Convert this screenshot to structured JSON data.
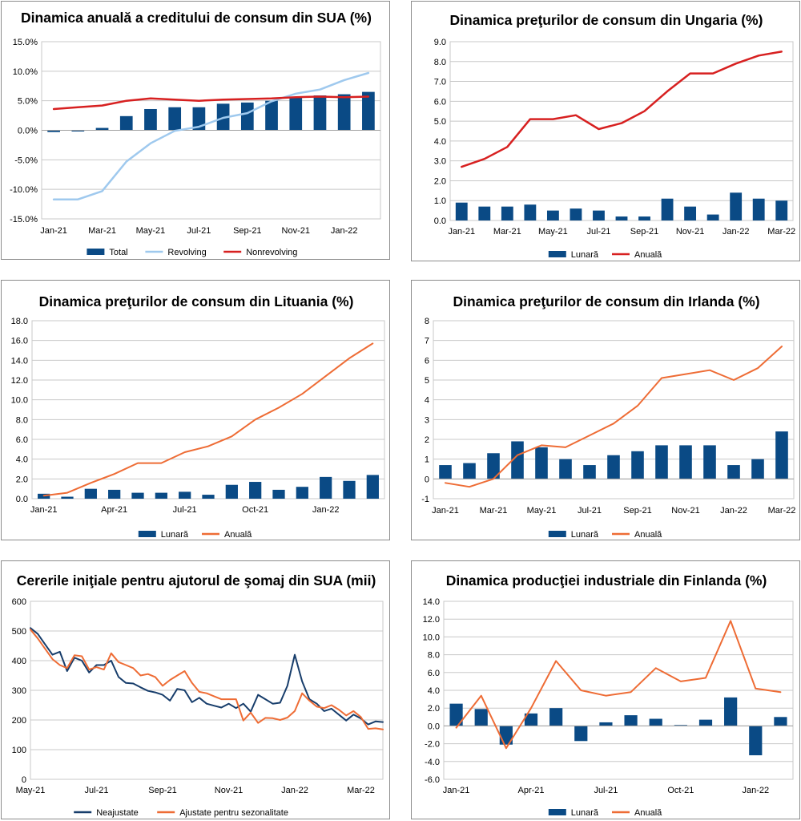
{
  "chart_data": [
    {
      "type": "bar",
      "title": "Dinamica anuală a creditului de consum din SUA (%)",
      "categories": [
        "Jan-21",
        "Feb-21",
        "Mar-21",
        "Apr-21",
        "May-21",
        "Jun-21",
        "Jul-21",
        "Aug-21",
        "Sep-21",
        "Oct-21",
        "Nov-21",
        "Dec-21",
        "Jan-22",
        "Feb-22"
      ],
      "x_tick_labels": [
        "Jan-21",
        "Mar-21",
        "May-21",
        "Jul-21",
        "Sep-21",
        "Nov-21",
        "Jan-22"
      ],
      "y_tick_labels": [
        "15.0%",
        "10.0%",
        "5.0%",
        "0.0%",
        "-5.0%",
        "-10.0%",
        "-15.0%"
      ],
      "ylim": [
        -15,
        15
      ],
      "y_ticks": [
        15,
        10,
        5,
        0,
        -5,
        -10,
        -15
      ],
      "series": [
        {
          "name": "Total",
          "kind": "bar",
          "color": "#0a4a85",
          "values": [
            -0.3,
            -0.2,
            0.4,
            2.4,
            3.6,
            3.9,
            3.9,
            4.5,
            4.7,
            5.0,
            5.6,
            5.9,
            6.1,
            6.5
          ]
        },
        {
          "name": "Revolving",
          "kind": "line",
          "color": "#9fc9ee",
          "values": [
            -11.7,
            -11.7,
            -10.3,
            -5.3,
            -2.2,
            -0.1,
            0.6,
            2.1,
            2.9,
            4.9,
            6.2,
            6.9,
            8.5,
            9.7
          ]
        },
        {
          "name": "Nonrevolving",
          "kind": "line",
          "color": "#d72020",
          "values": [
            3.6,
            3.9,
            4.2,
            5.0,
            5.4,
            5.2,
            5.0,
            5.2,
            5.3,
            5.4,
            5.6,
            5.7,
            5.6,
            5.7
          ]
        }
      ],
      "grid": "horizontal",
      "legend_position": "bottom"
    },
    {
      "type": "bar",
      "title": "Dinamica preţurilor de consum din Ungaria (%)",
      "categories": [
        "Jan-21",
        "Feb-21",
        "Mar-21",
        "Apr-21",
        "May-21",
        "Jun-21",
        "Jul-21",
        "Aug-21",
        "Sep-21",
        "Oct-21",
        "Nov-21",
        "Dec-21",
        "Jan-22",
        "Feb-22",
        "Mar-22"
      ],
      "x_tick_labels": [
        "Jan-21",
        "Mar-21",
        "May-21",
        "Jul-21",
        "Sep-21",
        "Nov-21",
        "Jan-22",
        "Mar-22"
      ],
      "y_tick_labels": [
        "9.0",
        "8.0",
        "7.0",
        "6.0",
        "5.0",
        "4.0",
        "3.0",
        "2.0",
        "1.0",
        "0.0"
      ],
      "ylim": [
        0,
        9
      ],
      "y_ticks": [
        9,
        8,
        7,
        6,
        5,
        4,
        3,
        2,
        1,
        0
      ],
      "series": [
        {
          "name": "Lunară",
          "kind": "bar",
          "color": "#0a4a85",
          "values": [
            0.9,
            0.7,
            0.7,
            0.8,
            0.5,
            0.6,
            0.5,
            0.2,
            0.2,
            1.1,
            0.7,
            0.3,
            1.4,
            1.1,
            1.0
          ]
        },
        {
          "name": "Anuală",
          "kind": "line",
          "color": "#d72020",
          "values": [
            2.7,
            3.1,
            3.7,
            5.1,
            5.1,
            5.3,
            4.6,
            4.9,
            5.5,
            6.5,
            7.4,
            7.4,
            7.9,
            8.3,
            8.5
          ]
        }
      ],
      "grid": "horizontal",
      "legend_position": "bottom"
    },
    {
      "type": "bar",
      "title": "Dinamica preţurilor de consum din Lituania (%)",
      "categories": [
        "Jan-21",
        "Feb-21",
        "Mar-21",
        "Apr-21",
        "May-21",
        "Jun-21",
        "Jul-21",
        "Aug-21",
        "Sep-21",
        "Oct-21",
        "Nov-21",
        "Dec-21",
        "Jan-22",
        "Feb-22",
        "Mar-22"
      ],
      "x_tick_labels": [
        "Jan-21",
        "Apr-21",
        "Jul-21",
        "Oct-21",
        "Jan-22"
      ],
      "y_tick_labels": [
        "18.0",
        "16.0",
        "14.0",
        "12.0",
        "10.0",
        "8.0",
        "6.0",
        "4.0",
        "2.0",
        "0.0"
      ],
      "ylim": [
        0,
        18
      ],
      "y_ticks": [
        18,
        16,
        14,
        12,
        10,
        8,
        6,
        4,
        2,
        0
      ],
      "series": [
        {
          "name": "Lunară",
          "kind": "bar",
          "color": "#0a4a85",
          "values": [
            0.5,
            0.2,
            1.0,
            0.9,
            0.6,
            0.6,
            0.7,
            0.4,
            1.4,
            1.7,
            0.9,
            1.2,
            2.2,
            1.8,
            2.4
          ]
        },
        {
          "name": "Anuală",
          "kind": "line",
          "color": "#ee6c35",
          "values": [
            0.3,
            0.6,
            1.6,
            2.5,
            3.6,
            3.6,
            4.7,
            5.3,
            6.3,
            8.0,
            9.2,
            10.6,
            12.4,
            14.2,
            15.7
          ]
        }
      ],
      "grid": "horizontal",
      "legend_position": "bottom"
    },
    {
      "type": "bar",
      "title": "Dinamica preţurilor de consum din Irlanda (%)",
      "categories": [
        "Jan-21",
        "Feb-21",
        "Mar-21",
        "Apr-21",
        "May-21",
        "Jun-21",
        "Jul-21",
        "Aug-21",
        "Sep-21",
        "Oct-21",
        "Nov-21",
        "Dec-21",
        "Jan-22",
        "Feb-22",
        "Mar-22"
      ],
      "x_tick_labels": [
        "Jan-21",
        "Mar-21",
        "May-21",
        "Jul-21",
        "Sep-21",
        "Nov-21",
        "Jan-22",
        "Mar-22"
      ],
      "y_tick_labels": [
        "8",
        "7",
        "6",
        "5",
        "4",
        "3",
        "2",
        "1",
        "0",
        "-1"
      ],
      "ylim": [
        -1,
        8
      ],
      "y_ticks": [
        8,
        7,
        6,
        5,
        4,
        3,
        2,
        1,
        0,
        -1
      ],
      "series": [
        {
          "name": "Lunară",
          "kind": "bar",
          "color": "#0a4a85",
          "values": [
            0.7,
            0.8,
            1.3,
            1.9,
            1.6,
            1.0,
            0.7,
            1.2,
            1.4,
            1.7,
            1.7,
            1.7,
            0.7,
            1.0,
            2.4
          ]
        },
        {
          "name": "Anuală",
          "kind": "line",
          "color": "#ee6c35",
          "values": [
            -0.2,
            -0.4,
            0.0,
            1.2,
            1.7,
            1.6,
            2.2,
            2.8,
            3.7,
            5.1,
            5.3,
            5.5,
            5.0,
            5.6,
            6.7
          ]
        }
      ],
      "grid": "horizontal",
      "legend_position": "bottom"
    },
    {
      "type": "line",
      "title": "Cererile iniţiale pentru ajutorul de şomaj din SUA (mii)",
      "x_tick_labels": [
        "May-21",
        "Jul-21",
        "Sep-21",
        "Nov-21",
        "Jan-22",
        "Mar-22"
      ],
      "x_tick_positions": [
        0,
        9,
        18,
        27,
        36,
        45
      ],
      "y_tick_labels": [
        "600",
        "500",
        "400",
        "300",
        "200",
        "100",
        "0"
      ],
      "ylim": [
        0,
        600
      ],
      "y_ticks": [
        600,
        500,
        400,
        300,
        200,
        100,
        0
      ],
      "series": [
        {
          "name": "Neajustate",
          "kind": "line",
          "color": "#173d6b",
          "values": [
            510,
            490,
            455,
            420,
            430,
            365,
            410,
            400,
            360,
            385,
            385,
            400,
            345,
            325,
            323,
            310,
            298,
            293,
            285,
            265,
            305,
            300,
            260,
            275,
            255,
            248,
            242,
            255,
            240,
            255,
            228,
            285,
            270,
            255,
            258,
            315,
            420,
            330,
            270,
            255,
            230,
            238,
            218,
            198,
            218,
            205,
            185,
            195,
            193
          ]
        },
        {
          "name": "Ajustate pentru sezonalitate",
          "kind": "line",
          "color": "#ee6c35",
          "values": [
            505,
            475,
            440,
            405,
            385,
            375,
            418,
            415,
            370,
            378,
            370,
            425,
            395,
            385,
            375,
            350,
            355,
            345,
            315,
            335,
            350,
            365,
            325,
            295,
            290,
            280,
            270,
            270,
            270,
            198,
            225,
            190,
            207,
            206,
            200,
            208,
            230,
            290,
            265,
            245,
            240,
            250,
            235,
            215,
            230,
            210,
            170,
            172,
            168
          ]
        }
      ],
      "grid": "horizontal",
      "legend_position": "bottom"
    },
    {
      "type": "bar",
      "title": "Dinamica producţiei industriale din Finlanda (%)",
      "categories": [
        "Jan-21",
        "Feb-21",
        "Mar-21",
        "Apr-21",
        "May-21",
        "Jun-21",
        "Jul-21",
        "Aug-21",
        "Sep-21",
        "Oct-21",
        "Nov-21",
        "Dec-21",
        "Jan-22",
        "Feb-22"
      ],
      "x_tick_labels": [
        "Jan-21",
        "Apr-21",
        "Jul-21",
        "Oct-21",
        "Jan-22"
      ],
      "y_tick_labels": [
        "14.0",
        "12.0",
        "10.0",
        "8.0",
        "6.0",
        "4.0",
        "2.0",
        "0.0",
        "-2.0",
        "-4.0",
        "-6.0"
      ],
      "ylim": [
        -6,
        14
      ],
      "y_ticks": [
        14,
        12,
        10,
        8,
        6,
        4,
        2,
        0,
        -2,
        -4,
        -6
      ],
      "series": [
        {
          "name": "Lunară",
          "kind": "bar",
          "color": "#0a4a85",
          "values": [
            2.5,
            1.9,
            -2.1,
            1.4,
            2.0,
            -1.7,
            0.4,
            1.2,
            0.8,
            0.1,
            0.7,
            3.2,
            -3.3,
            1.0
          ]
        },
        {
          "name": "Anuală",
          "kind": "line",
          "color": "#ee6c35",
          "values": [
            -0.2,
            3.4,
            -2.5,
            2.0,
            7.3,
            4.0,
            3.4,
            3.8,
            6.5,
            5.0,
            5.4,
            11.8,
            4.2,
            3.8
          ]
        }
      ],
      "grid": "horizontal",
      "legend_position": "bottom"
    }
  ]
}
